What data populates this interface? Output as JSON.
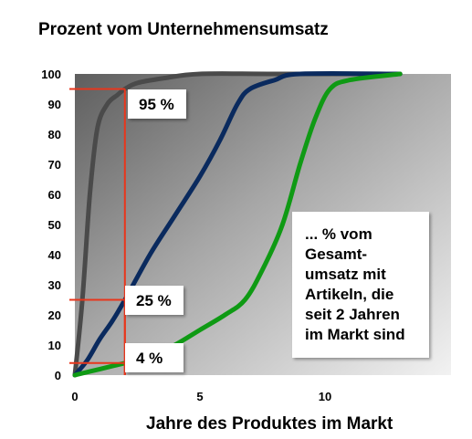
{
  "chart_data": {
    "type": "line",
    "title": "Prozent vom Unternehmensumsatz",
    "xlabel": "Jahre des Produktes im Markt",
    "ylabel": "",
    "xlim": [
      0,
      15
    ],
    "ylim": [
      0,
      100
    ],
    "x_ticks": [
      0,
      5,
      10
    ],
    "y_ticks": [
      0,
      10,
      20,
      30,
      40,
      50,
      60,
      70,
      80,
      90,
      100
    ],
    "grid": false,
    "series": [
      {
        "color": "#4a4a4a",
        "points": [
          [
            0,
            0
          ],
          [
            0.3,
            25
          ],
          [
            0.6,
            60
          ],
          [
            0.9,
            82
          ],
          [
            1.3,
            90
          ],
          [
            1.7,
            93
          ],
          [
            2.0,
            95
          ],
          [
            2.5,
            97
          ],
          [
            3.5,
            98.5
          ],
          [
            5,
            100
          ],
          [
            8,
            100
          ],
          [
            13,
            100
          ]
        ]
      },
      {
        "color": "#0a2a5e",
        "points": [
          [
            0,
            0
          ],
          [
            0.5,
            5
          ],
          [
            1.0,
            12
          ],
          [
            1.5,
            18
          ],
          [
            2.0,
            25
          ],
          [
            3.0,
            40
          ],
          [
            4.0,
            53
          ],
          [
            5.0,
            66
          ],
          [
            5.8,
            78
          ],
          [
            6.5,
            90
          ],
          [
            7.0,
            95
          ],
          [
            8.0,
            98
          ],
          [
            9.0,
            100
          ],
          [
            13,
            100
          ]
        ]
      },
      {
        "color": "#0f9a14",
        "points": [
          [
            0,
            0
          ],
          [
            1.0,
            2
          ],
          [
            2.0,
            4
          ],
          [
            3.0,
            6
          ],
          [
            4.0,
            10
          ],
          [
            5.0,
            15
          ],
          [
            6.0,
            20
          ],
          [
            6.8,
            25
          ],
          [
            7.5,
            35
          ],
          [
            8.3,
            50
          ],
          [
            9.0,
            70
          ],
          [
            9.6,
            85
          ],
          [
            10.2,
            95
          ],
          [
            11.0,
            98
          ],
          [
            13,
            100
          ]
        ]
      }
    ],
    "reference_lines": [
      {
        "x": 2,
        "y": 95,
        "label": "95 %"
      },
      {
        "x": 2,
        "y": 25,
        "label": "25 %"
      },
      {
        "x": 2,
        "y": 4,
        "label": "4 %"
      }
    ],
    "annotation": {
      "lines": [
        "... % vom",
        "Gesamt-",
        "umsatz mit",
        "Artikeln,  die",
        "seit 2 Jahren",
        "im Markt sind"
      ]
    },
    "marker_color": "#e8361c"
  }
}
